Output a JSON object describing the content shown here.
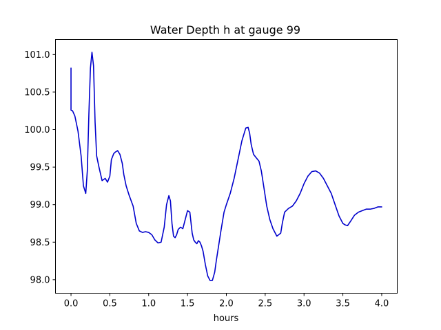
{
  "chart_data": {
    "type": "line",
    "title": "Water Depth h at gauge 99",
    "xlabel": "hours",
    "ylabel": "",
    "xlim": [
      -0.2,
      4.2
    ],
    "ylim": [
      97.82,
      101.2
    ],
    "xticks": [
      0.0,
      0.5,
      1.0,
      1.5,
      2.0,
      2.5,
      3.0,
      3.5,
      4.0
    ],
    "xtick_labels": [
      "0.0",
      "0.5",
      "1.0",
      "1.5",
      "2.0",
      "2.5",
      "3.0",
      "3.5",
      "4.0"
    ],
    "yticks": [
      98.0,
      98.5,
      99.0,
      99.5,
      100.0,
      100.5,
      101.0
    ],
    "ytick_labels": [
      "98.0",
      "98.5",
      "99.0",
      "99.5",
      "100.0",
      "100.5",
      "101.0"
    ],
    "grid": false,
    "series": [
      {
        "color": "#0000cc",
        "x": [
          0.0,
          0.0,
          0.02,
          0.05,
          0.09,
          0.13,
          0.16,
          0.19,
          0.21,
          0.23,
          0.25,
          0.27,
          0.29,
          0.31,
          0.33,
          0.36,
          0.4,
          0.44,
          0.47,
          0.5,
          0.52,
          0.55,
          0.57,
          0.6,
          0.63,
          0.66,
          0.68,
          0.71,
          0.75,
          0.8,
          0.84,
          0.88,
          0.92,
          0.96,
          1.0,
          1.04,
          1.08,
          1.12,
          1.16,
          1.2,
          1.23,
          1.26,
          1.28,
          1.3,
          1.32,
          1.34,
          1.36,
          1.38,
          1.41,
          1.44,
          1.47,
          1.5,
          1.53,
          1.56,
          1.58,
          1.6,
          1.62,
          1.64,
          1.66,
          1.68,
          1.7,
          1.73,
          1.76,
          1.79,
          1.82,
          1.85,
          1.87,
          1.9,
          1.93,
          1.97,
          2.0,
          2.05,
          2.1,
          2.15,
          2.2,
          2.25,
          2.28,
          2.3,
          2.32,
          2.35,
          2.38,
          2.42,
          2.45,
          2.48,
          2.52,
          2.56,
          2.6,
          2.65,
          2.7,
          2.72,
          2.75,
          2.8,
          2.85,
          2.9,
          2.95,
          3.0,
          3.05,
          3.1,
          3.15,
          3.2,
          3.25,
          3.3,
          3.35,
          3.4,
          3.45,
          3.5,
          3.53,
          3.56,
          3.6,
          3.65,
          3.7,
          3.75,
          3.8,
          3.85,
          3.9,
          3.95,
          4.0
        ],
        "y": [
          100.82,
          100.26,
          100.25,
          100.18,
          99.98,
          99.65,
          99.25,
          99.15,
          99.45,
          100.2,
          100.82,
          101.03,
          100.85,
          100.1,
          99.65,
          99.5,
          99.32,
          99.35,
          99.3,
          99.38,
          99.6,
          99.68,
          99.7,
          99.72,
          99.67,
          99.55,
          99.4,
          99.25,
          99.12,
          98.98,
          98.75,
          98.65,
          98.63,
          98.64,
          98.63,
          98.6,
          98.53,
          98.49,
          98.5,
          98.7,
          99.0,
          99.12,
          99.05,
          98.75,
          98.58,
          98.56,
          98.6,
          98.67,
          98.7,
          98.68,
          98.8,
          98.92,
          98.9,
          98.62,
          98.53,
          98.5,
          98.48,
          98.52,
          98.5,
          98.45,
          98.38,
          98.2,
          98.05,
          97.99,
          97.99,
          98.1,
          98.25,
          98.45,
          98.65,
          98.9,
          99.0,
          99.15,
          99.35,
          99.6,
          99.85,
          100.02,
          100.03,
          99.95,
          99.8,
          99.67,
          99.63,
          99.58,
          99.45,
          99.25,
          98.98,
          98.8,
          98.68,
          98.58,
          98.62,
          98.75,
          98.9,
          98.95,
          98.98,
          99.05,
          99.15,
          99.28,
          99.38,
          99.44,
          99.45,
          99.42,
          99.35,
          99.25,
          99.15,
          99.0,
          98.85,
          98.75,
          98.73,
          98.72,
          98.78,
          98.86,
          98.9,
          98.92,
          98.94,
          98.94,
          98.95,
          98.97,
          98.97
        ]
      }
    ]
  }
}
